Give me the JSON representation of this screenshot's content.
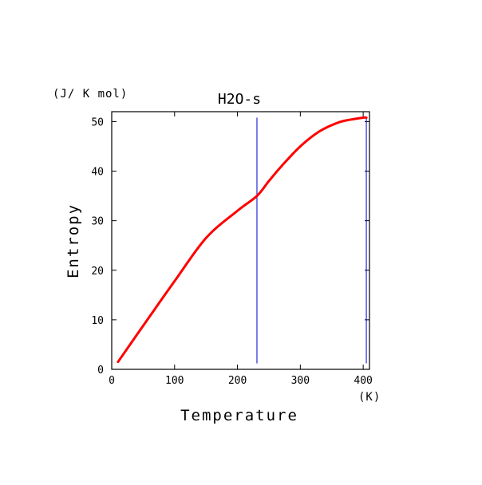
{
  "chart_data": {
    "type": "line",
    "title": "H2O-s",
    "xlabel": "Temperature",
    "ylabel": "Entropy",
    "x_unit": "(K)",
    "y_unit": "(J/ K mol)",
    "xlim": [
      0,
      410
    ],
    "ylim": [
      0,
      52
    ],
    "x_ticks": [
      0,
      100,
      200,
      300,
      400
    ],
    "y_ticks": [
      0,
      10,
      20,
      30,
      40,
      50
    ],
    "x_tick_labels": [
      "0",
      "100",
      "200",
      "300",
      "400"
    ],
    "y_tick_labels": [
      "0",
      "10",
      "20",
      "30",
      "40",
      "50"
    ],
    "grid": false,
    "vertical_lines": [
      {
        "x": 231,
        "color": "#0000cc"
      },
      {
        "x": 405,
        "color": "#0000cc"
      }
    ],
    "series": [
      {
        "color": "#ff0000",
        "x": [
          10,
          50,
          100,
          150,
          200,
          231,
          250,
          270,
          300,
          330,
          360,
          380,
          400,
          405
        ],
        "y": [
          1.5,
          8.8,
          17.8,
          26.5,
          32.0,
          35.0,
          38.0,
          41.0,
          45.0,
          48.0,
          49.8,
          50.4,
          50.8,
          50.8
        ]
      }
    ]
  }
}
